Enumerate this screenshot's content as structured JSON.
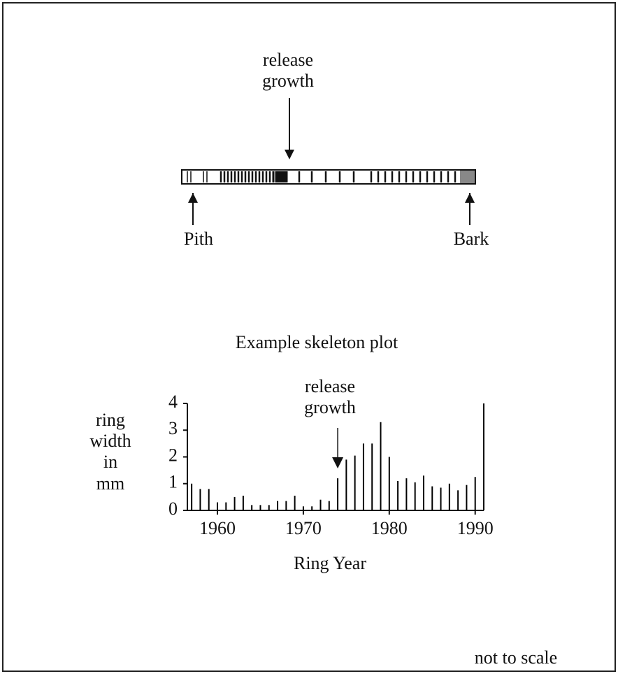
{
  "core_diagram": {
    "release_label": [
      "release",
      "growth"
    ],
    "pith": "Pith",
    "bark": "Bark"
  },
  "chart_data": {
    "type": "bar",
    "title": "Example skeleton plot",
    "annotation": [
      "release",
      "growth"
    ],
    "annotation_x": 1974,
    "ylabel": [
      "ring",
      "width",
      "in",
      "mm"
    ],
    "xlabel": "Ring Year",
    "x": [
      1957,
      1958,
      1959,
      1960,
      1961,
      1962,
      1963,
      1964,
      1965,
      1966,
      1967,
      1968,
      1969,
      1970,
      1971,
      1972,
      1973,
      1974,
      1975,
      1976,
      1977,
      1978,
      1979,
      1980,
      1981,
      1982,
      1983,
      1984,
      1985,
      1986,
      1987,
      1988,
      1989,
      1990
    ],
    "values": [
      1.0,
      0.8,
      0.8,
      0.3,
      0.3,
      0.5,
      0.55,
      0.2,
      0.2,
      0.2,
      0.35,
      0.35,
      0.55,
      0.15,
      0.15,
      0.4,
      0.35,
      1.2,
      1.9,
      2.05,
      2.5,
      2.5,
      3.3,
      2.0,
      1.1,
      1.2,
      1.05,
      1.3,
      0.9,
      0.85,
      1.0,
      0.75,
      0.95,
      1.25
    ],
    "color": "#000000",
    "xlim": [
      1956.5,
      1991
    ],
    "xticks": [
      1960,
      1970,
      1980,
      1990
    ],
    "ylim": [
      0,
      4
    ],
    "yticks": [
      0,
      1,
      2,
      3,
      4
    ]
  },
  "footnote": "not to scale"
}
